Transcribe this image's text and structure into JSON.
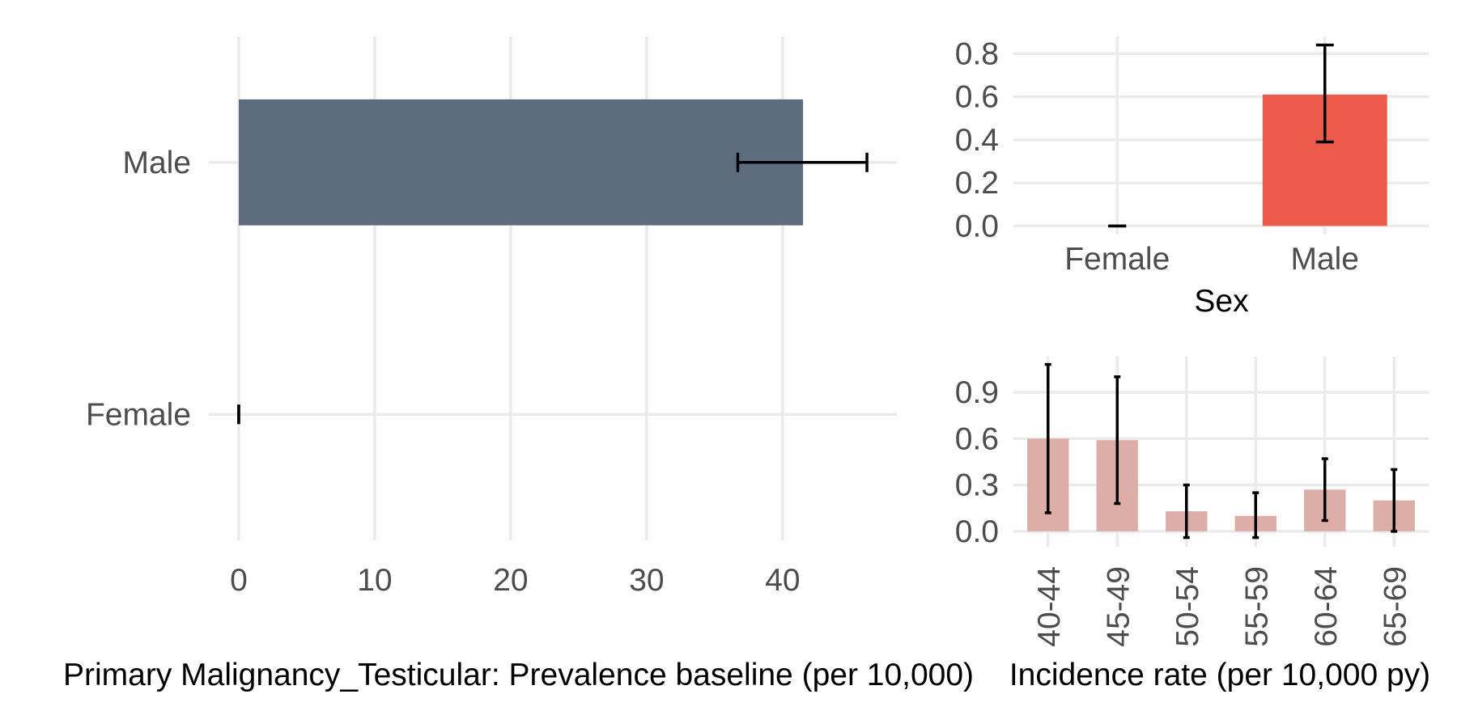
{
  "colors": {
    "prevalence_bar": "#5d6d7e",
    "sex_incidence_bar": "#ec5a4b",
    "age_incidence_bar": "#dcaea7",
    "error_bar": "#000000",
    "grid": "#ebebeb",
    "tick_text": "#4d4d4d",
    "axis_title_text": "#000000"
  },
  "chart_data": [
    {
      "id": "prevalence",
      "type": "bar",
      "orientation": "horizontal",
      "categories": [
        "Female",
        "Male"
      ],
      "values": [
        0,
        41.5
      ],
      "error_low": [
        0,
        36.7
      ],
      "error_high": [
        0,
        46.2
      ],
      "xlabel": "Primary Malignancy_Testicular: Prevalence baseline (per 10,000)",
      "ylabel": "",
      "xlim": [
        -2.2,
        48.4
      ],
      "xticks": [
        0,
        10,
        20,
        30,
        40
      ],
      "grid": true,
      "legend": "none"
    },
    {
      "id": "incidence_by_sex",
      "type": "bar",
      "categories": [
        "Female",
        "Male"
      ],
      "values": [
        0,
        0.61
      ],
      "error_low": [
        0,
        0.39
      ],
      "error_high": [
        0,
        0.84
      ],
      "xlabel": "Sex",
      "ylabel": "",
      "ylim": [
        -0.04,
        0.88
      ],
      "yticks": [
        "0.0",
        "0.2",
        "0.4",
        "0.6",
        "0.8"
      ],
      "grid": true,
      "legend": "none"
    },
    {
      "id": "incidence_by_age",
      "type": "bar",
      "categories": [
        "40-44",
        "45-49",
        "50-54",
        "55-59",
        "60-64",
        "65-69"
      ],
      "values": [
        0.6,
        0.59,
        0.13,
        0.1,
        0.27,
        0.2
      ],
      "error_low": [
        0.12,
        0.18,
        -0.04,
        -0.04,
        0.07,
        0.0
      ],
      "error_high": [
        1.08,
        1.0,
        0.3,
        0.25,
        0.47,
        0.4
      ],
      "xlabel": "Incidence rate (per 10,000 py)",
      "ylabel": "",
      "ylim": [
        -0.1,
        1.13
      ],
      "yticks": [
        "0.0",
        "0.3",
        "0.6",
        "0.9"
      ],
      "grid": true,
      "legend": "none"
    }
  ]
}
